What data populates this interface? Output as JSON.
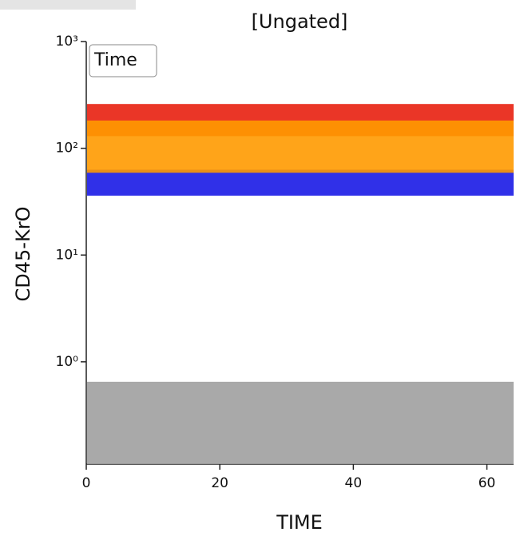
{
  "chart_data": {
    "type": "scatter",
    "title": "[Ungated]",
    "legend_label": "Time",
    "x_label": "TIME",
    "y_label": "CD45-KrO",
    "yscale": "log",
    "xlim": [
      0,
      64
    ],
    "xticks": [
      0,
      20,
      40,
      60
    ],
    "ylim": [
      0.11,
      1000
    ],
    "yticks": [
      {
        "value": 1,
        "label": "10⁰"
      },
      {
        "value": 10,
        "label": "10¹"
      },
      {
        "value": 100,
        "label": "10²"
      },
      {
        "value": 1000,
        "label": "10³"
      }
    ],
    "series": [
      {
        "color": "#a0a0a0",
        "range": [
          0.11,
          0.65
        ]
      },
      {
        "color": "#1a1ae6",
        "range": [
          36,
          63
        ]
      },
      {
        "color": "#e82010",
        "range": [
          130,
          260
        ]
      },
      {
        "color": "#ff9a00",
        "range": [
          59,
          182
        ]
      }
    ]
  }
}
